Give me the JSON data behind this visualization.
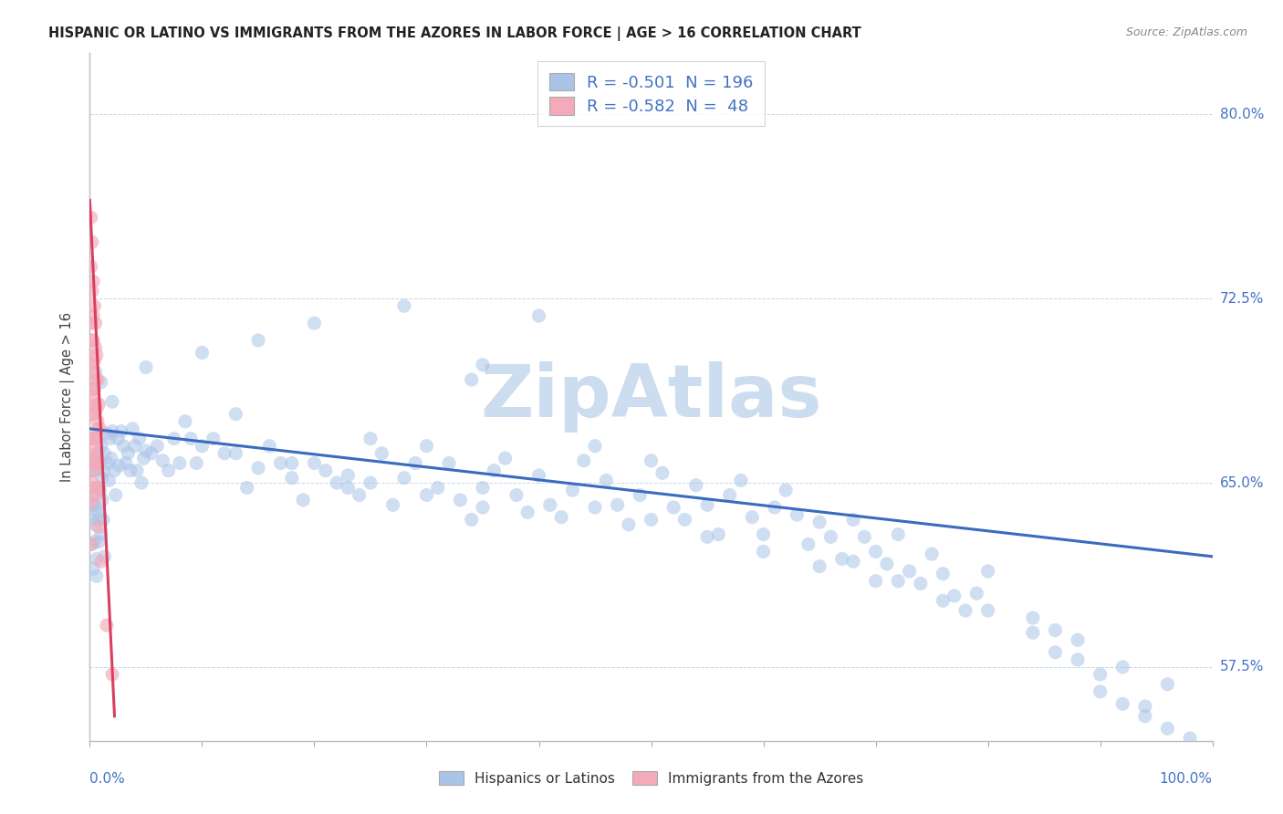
{
  "title": "HISPANIC OR LATINO VS IMMIGRANTS FROM THE AZORES IN LABOR FORCE | AGE > 16 CORRELATION CHART",
  "source": "Source: ZipAtlas.com",
  "ylabel": "In Labor Force | Age > 16",
  "yticks": [
    57.5,
    65.0,
    72.5,
    80.0
  ],
  "ytick_labels": [
    "57.5%",
    "65.0%",
    "72.5%",
    "80.0%"
  ],
  "xmin": 0.0,
  "xmax": 1.0,
  "ymin": 0.545,
  "ymax": 0.825,
  "series1": {
    "name": "Hispanics or Latinos",
    "R": -0.501,
    "N": 196,
    "color": "#aac4e8",
    "line_color": "#3a6bbf",
    "points": [
      [
        0.002,
        0.658
      ],
      [
        0.003,
        0.645
      ],
      [
        0.004,
        0.655
      ],
      [
        0.005,
        0.66
      ],
      [
        0.006,
        0.64
      ],
      [
        0.007,
        0.662
      ],
      [
        0.008,
        0.648
      ],
      [
        0.009,
        0.658
      ],
      [
        0.01,
        0.665
      ],
      [
        0.011,
        0.652
      ],
      [
        0.012,
        0.655
      ],
      [
        0.013,
        0.662
      ],
      [
        0.015,
        0.67
      ],
      [
        0.016,
        0.658
      ],
      [
        0.017,
        0.651
      ],
      [
        0.018,
        0.668
      ],
      [
        0.019,
        0.66
      ],
      [
        0.02,
        0.671
      ],
      [
        0.022,
        0.655
      ],
      [
        0.023,
        0.645
      ],
      [
        0.025,
        0.668
      ],
      [
        0.026,
        0.657
      ],
      [
        0.028,
        0.671
      ],
      [
        0.03,
        0.665
      ],
      [
        0.032,
        0.658
      ],
      [
        0.034,
        0.662
      ],
      [
        0.036,
        0.655
      ],
      [
        0.038,
        0.672
      ],
      [
        0.04,
        0.665
      ],
      [
        0.042,
        0.655
      ],
      [
        0.044,
        0.668
      ],
      [
        0.046,
        0.65
      ],
      [
        0.048,
        0.66
      ],
      [
        0.05,
        0.663
      ],
      [
        0.055,
        0.662
      ],
      [
        0.06,
        0.665
      ],
      [
        0.065,
        0.659
      ],
      [
        0.07,
        0.655
      ],
      [
        0.075,
        0.668
      ],
      [
        0.08,
        0.658
      ],
      [
        0.085,
        0.675
      ],
      [
        0.09,
        0.668
      ],
      [
        0.095,
        0.658
      ],
      [
        0.1,
        0.665
      ],
      [
        0.11,
        0.668
      ],
      [
        0.12,
        0.662
      ],
      [
        0.13,
        0.678
      ],
      [
        0.14,
        0.648
      ],
      [
        0.15,
        0.656
      ],
      [
        0.16,
        0.665
      ],
      [
        0.17,
        0.658
      ],
      [
        0.18,
        0.652
      ],
      [
        0.19,
        0.643
      ],
      [
        0.2,
        0.658
      ],
      [
        0.21,
        0.655
      ],
      [
        0.22,
        0.65
      ],
      [
        0.23,
        0.648
      ],
      [
        0.24,
        0.645
      ],
      [
        0.25,
        0.668
      ],
      [
        0.26,
        0.662
      ],
      [
        0.27,
        0.641
      ],
      [
        0.28,
        0.652
      ],
      [
        0.29,
        0.658
      ],
      [
        0.3,
        0.665
      ],
      [
        0.31,
        0.648
      ],
      [
        0.32,
        0.658
      ],
      [
        0.33,
        0.643
      ],
      [
        0.34,
        0.635
      ],
      [
        0.35,
        0.648
      ],
      [
        0.36,
        0.655
      ],
      [
        0.37,
        0.66
      ],
      [
        0.38,
        0.645
      ],
      [
        0.39,
        0.638
      ],
      [
        0.4,
        0.653
      ],
      [
        0.41,
        0.641
      ],
      [
        0.42,
        0.636
      ],
      [
        0.43,
        0.647
      ],
      [
        0.44,
        0.659
      ],
      [
        0.45,
        0.665
      ],
      [
        0.46,
        0.651
      ],
      [
        0.47,
        0.641
      ],
      [
        0.48,
        0.633
      ],
      [
        0.49,
        0.645
      ],
      [
        0.5,
        0.659
      ],
      [
        0.51,
        0.654
      ],
      [
        0.52,
        0.64
      ],
      [
        0.53,
        0.635
      ],
      [
        0.54,
        0.649
      ],
      [
        0.55,
        0.641
      ],
      [
        0.56,
        0.629
      ],
      [
        0.57,
        0.645
      ],
      [
        0.58,
        0.651
      ],
      [
        0.59,
        0.636
      ],
      [
        0.6,
        0.629
      ],
      [
        0.61,
        0.64
      ],
      [
        0.62,
        0.647
      ],
      [
        0.63,
        0.637
      ],
      [
        0.64,
        0.625
      ],
      [
        0.65,
        0.634
      ],
      [
        0.66,
        0.628
      ],
      [
        0.67,
        0.619
      ],
      [
        0.68,
        0.635
      ],
      [
        0.69,
        0.628
      ],
      [
        0.7,
        0.622
      ],
      [
        0.71,
        0.617
      ],
      [
        0.72,
        0.629
      ],
      [
        0.73,
        0.614
      ],
      [
        0.74,
        0.609
      ],
      [
        0.75,
        0.621
      ],
      [
        0.76,
        0.613
      ],
      [
        0.77,
        0.604
      ],
      [
        0.78,
        0.598
      ],
      [
        0.79,
        0.605
      ],
      [
        0.8,
        0.614
      ],
      [
        0.84,
        0.595
      ],
      [
        0.86,
        0.59
      ],
      [
        0.88,
        0.586
      ],
      [
        0.9,
        0.572
      ],
      [
        0.92,
        0.575
      ],
      [
        0.94,
        0.559
      ],
      [
        0.96,
        0.568
      ],
      [
        0.002,
        0.625
      ],
      [
        0.003,
        0.615
      ],
      [
        0.005,
        0.633
      ],
      [
        0.006,
        0.612
      ],
      [
        0.007,
        0.638
      ],
      [
        0.008,
        0.626
      ],
      [
        0.009,
        0.647
      ],
      [
        0.01,
        0.629
      ],
      [
        0.011,
        0.643
      ],
      [
        0.012,
        0.635
      ],
      [
        0.013,
        0.62
      ],
      [
        0.001,
        0.648
      ],
      [
        0.001,
        0.635
      ],
      [
        0.001,
        0.655
      ],
      [
        0.001,
        0.668
      ],
      [
        0.003,
        0.641
      ],
      [
        0.004,
        0.626
      ],
      [
        0.006,
        0.619
      ],
      [
        0.008,
        0.635
      ],
      [
        0.05,
        0.697
      ],
      [
        0.1,
        0.703
      ],
      [
        0.15,
        0.708
      ],
      [
        0.2,
        0.715
      ],
      [
        0.28,
        0.722
      ],
      [
        0.35,
        0.698
      ],
      [
        0.4,
        0.718
      ],
      [
        0.34,
        0.692
      ],
      [
        0.68,
        0.618
      ],
      [
        0.72,
        0.61
      ],
      [
        0.76,
        0.602
      ],
      [
        0.8,
        0.598
      ],
      [
        0.84,
        0.589
      ],
      [
        0.86,
        0.581
      ],
      [
        0.88,
        0.578
      ],
      [
        0.9,
        0.565
      ],
      [
        0.92,
        0.56
      ],
      [
        0.94,
        0.555
      ],
      [
        0.96,
        0.55
      ],
      [
        0.98,
        0.546
      ],
      [
        0.02,
        0.683
      ],
      [
        0.01,
        0.691
      ],
      [
        0.005,
        0.695
      ],
      [
        0.003,
        0.688
      ],
      [
        0.45,
        0.64
      ],
      [
        0.5,
        0.635
      ],
      [
        0.55,
        0.628
      ],
      [
        0.6,
        0.622
      ],
      [
        0.65,
        0.616
      ],
      [
        0.7,
        0.61
      ],
      [
        0.25,
        0.65
      ],
      [
        0.3,
        0.645
      ],
      [
        0.35,
        0.64
      ],
      [
        0.13,
        0.662
      ],
      [
        0.18,
        0.658
      ],
      [
        0.23,
        0.653
      ]
    ],
    "trendline_x": [
      0.0,
      1.0
    ],
    "trendline_y": [
      0.672,
      0.62
    ]
  },
  "series2": {
    "name": "Immigrants from the Azores",
    "R": -0.582,
    "N": 48,
    "color": "#f4aab8",
    "line_color": "#d94060",
    "points": [
      [
        0.002,
        0.748
      ],
      [
        0.002,
        0.728
      ],
      [
        0.003,
        0.718
      ],
      [
        0.003,
        0.695
      ],
      [
        0.004,
        0.688
      ],
      [
        0.004,
        0.668
      ],
      [
        0.005,
        0.705
      ],
      [
        0.005,
        0.682
      ],
      [
        0.006,
        0.662
      ],
      [
        0.006,
        0.645
      ],
      [
        0.007,
        0.675
      ],
      [
        0.007,
        0.658
      ],
      [
        0.008,
        0.648
      ],
      [
        0.008,
        0.632
      ],
      [
        0.001,
        0.758
      ],
      [
        0.001,
        0.738
      ],
      [
        0.001,
        0.715
      ],
      [
        0.001,
        0.698
      ],
      [
        0.001,
        0.678
      ],
      [
        0.001,
        0.66
      ],
      [
        0.001,
        0.642
      ],
      [
        0.001,
        0.625
      ],
      [
        0.002,
        0.708
      ],
      [
        0.002,
        0.688
      ],
      [
        0.002,
        0.668
      ],
      [
        0.002,
        0.65
      ],
      [
        0.003,
        0.732
      ],
      [
        0.003,
        0.708
      ],
      [
        0.003,
        0.685
      ],
      [
        0.003,
        0.665
      ],
      [
        0.004,
        0.722
      ],
      [
        0.004,
        0.7
      ],
      [
        0.004,
        0.678
      ],
      [
        0.004,
        0.655
      ],
      [
        0.005,
        0.715
      ],
      [
        0.005,
        0.692
      ],
      [
        0.005,
        0.668
      ],
      [
        0.005,
        0.648
      ],
      [
        0.006,
        0.702
      ],
      [
        0.006,
        0.68
      ],
      [
        0.006,
        0.658
      ],
      [
        0.007,
        0.692
      ],
      [
        0.007,
        0.672
      ],
      [
        0.008,
        0.682
      ],
      [
        0.009,
        0.672
      ],
      [
        0.01,
        0.618
      ],
      [
        0.015,
        0.592
      ],
      [
        0.02,
        0.572
      ]
    ],
    "trendline_x": [
      0.0,
      0.022
    ],
    "trendline_y": [
      0.765,
      0.555
    ]
  },
  "watermark": "ZipAtlas",
  "watermark_color": "#ccddf0",
  "background_color": "#ffffff",
  "grid_color": "#c8d8e8",
  "plot_bg": "#ffffff"
}
